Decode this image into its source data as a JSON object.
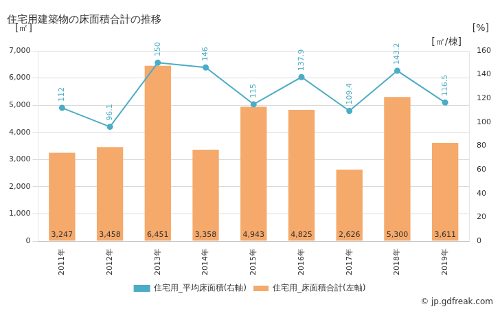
{
  "chart_data": {
    "type": "bar",
    "title": "住宅用建築物の床面積合計の推移",
    "y_label": "[㎡]",
    "y2_label": "[%]",
    "annotations": [
      "[㎡/棟]"
    ],
    "source": "© jp.gdfreak.com",
    "categories": [
      "2011年",
      "2012年",
      "2013年",
      "2014年",
      "2015年",
      "2016年",
      "2017年",
      "2018年",
      "2019年"
    ],
    "series": [
      {
        "name": "住宅用_床面積合計(左軸)",
        "type": "bar",
        "color": "#f5a96b",
        "axis": "y",
        "values": [
          3247,
          3458,
          6451,
          3358,
          4943,
          4825,
          2626,
          5300,
          3611
        ],
        "value_labels": [
          "3,247",
          "3,458",
          "6,451",
          "3,358",
          "4,943",
          "4,825",
          "2,626",
          "5,300",
          "3,611"
        ]
      },
      {
        "name": "住宅用_平均床面積(右軸)",
        "type": "line",
        "color": "#4bacc6",
        "axis": "y2",
        "marker": "circle",
        "values": [
          112,
          96.1,
          150,
          146,
          115,
          137.9,
          109.4,
          143.2,
          116.5
        ]
      }
    ],
    "ylim": [
      0,
      7000
    ],
    "yticks": [
      0,
      {
        "value": 1000,
        "label": "1,000"
      },
      {
        "value": 2000,
        "label": "2,000"
      },
      {
        "value": 3000,
        "label": "3,000"
      },
      {
        "value": 4000,
        "label": "4,000"
      },
      {
        "value": 5000,
        "label": "5,000"
      },
      {
        "value": 6000,
        "label": "6,000"
      },
      {
        "value": 7000,
        "label": "7,000"
      }
    ],
    "y2lim": [
      0,
      160
    ],
    "y2ticks": [
      0,
      20,
      40,
      60,
      80,
      100,
      120,
      140,
      160
    ],
    "grid": true,
    "legend": "bottom",
    "data_labels": true
  }
}
